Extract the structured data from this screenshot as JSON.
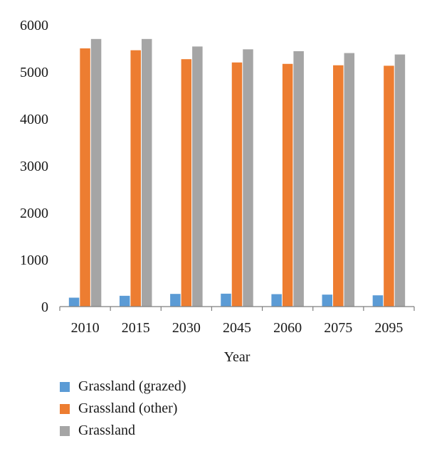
{
  "chart_data": {
    "type": "bar",
    "categories": [
      "2010",
      "2015",
      "2030",
      "2045",
      "2060",
      "2075",
      "2095"
    ],
    "series": [
      {
        "name": "Grassland (grazed)",
        "color": "#5b9bd5",
        "values": [
          190,
          230,
          270,
          275,
          265,
          255,
          240
        ]
      },
      {
        "name": "Grassland (other)",
        "color": "#ed7d31",
        "values": [
          5500,
          5460,
          5270,
          5200,
          5170,
          5140,
          5130
        ]
      },
      {
        "name": "Grassland",
        "color": "#a5a5a5",
        "values": [
          5700,
          5700,
          5540,
          5480,
          5440,
          5400,
          5370
        ]
      }
    ],
    "xlabel": "Year",
    "ylabel": "",
    "ylim": [
      0,
      6000
    ],
    "yticks": [
      "0",
      "1000",
      "2000",
      "3000",
      "4000",
      "5000",
      "6000"
    ],
    "grid": false,
    "legend_position": "bottom-left"
  }
}
